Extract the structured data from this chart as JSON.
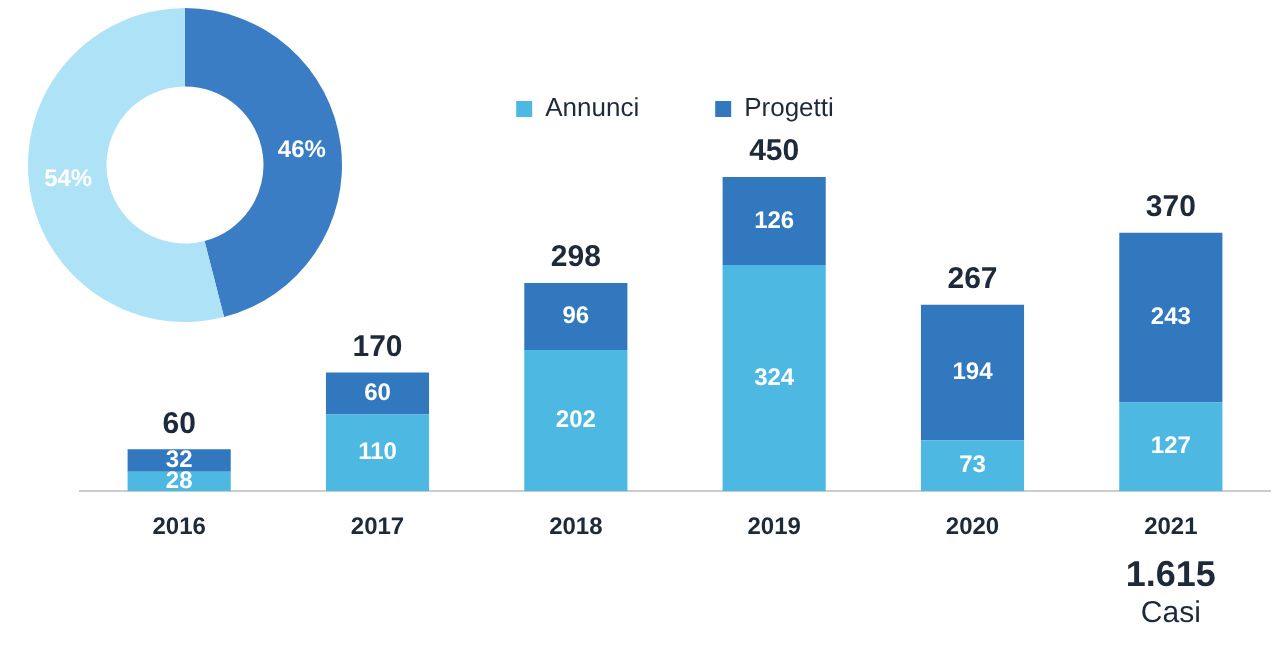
{
  "chart_data": [
    {
      "type": "donut",
      "categories": [
        null,
        null
      ],
      "values": [
        46,
        54
      ],
      "colors": [
        "#3a7dc4",
        "#aee2f7"
      ],
      "value_labels": [
        "46%",
        "54%"
      ]
    },
    {
      "type": "bar",
      "stacked": true,
      "categories": [
        "2016",
        "2017",
        "2018",
        "2019",
        "2020",
        "2021"
      ],
      "series": [
        {
          "name": "Annunci",
          "color": "#4db8e2",
          "values": [
            28,
            110,
            202,
            324,
            73,
            127
          ]
        },
        {
          "name": "Progetti",
          "color": "#3278bf",
          "values": [
            32,
            60,
            96,
            126,
            194,
            243
          ]
        }
      ],
      "data_labels": true,
      "totals": [
        "60",
        "170",
        "298",
        "450",
        "267",
        "370"
      ],
      "legend": "top",
      "annotations": [
        "1.615",
        "Casi"
      ]
    }
  ]
}
